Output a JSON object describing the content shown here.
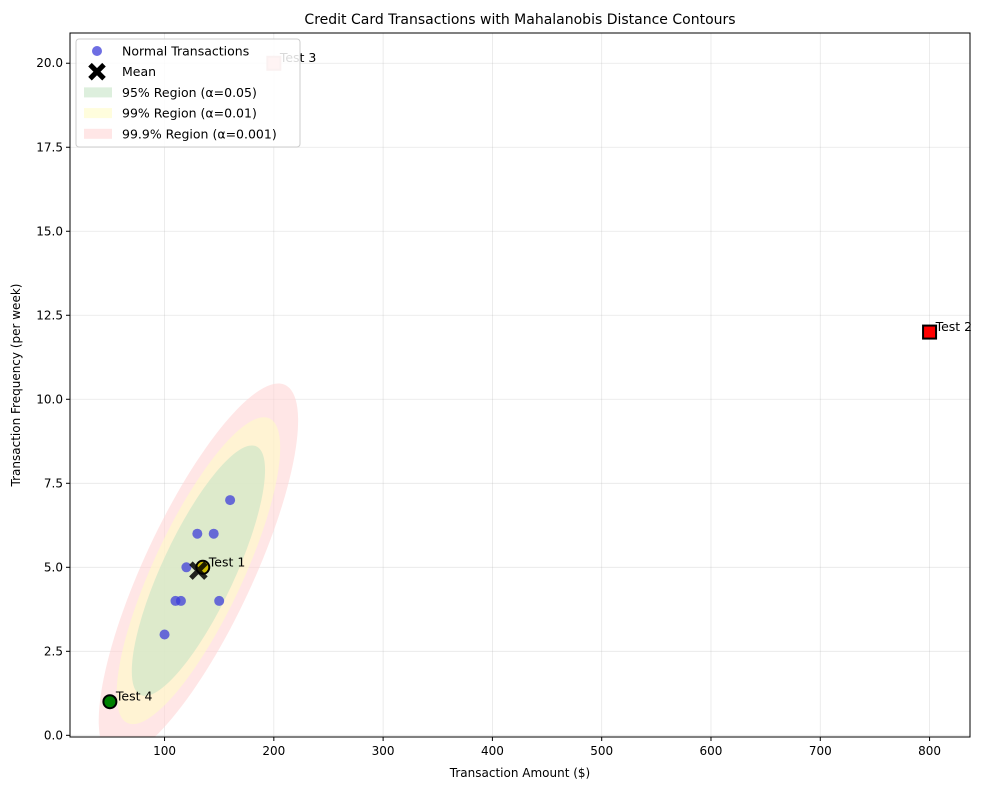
{
  "chart_data": {
    "type": "scatter",
    "title": "Credit Card Transactions with Mahalanobis Distance Contours",
    "xlabel": "Transaction Amount ($)",
    "ylabel": "Transaction Frequency (per week)",
    "xlim": [
      13.5,
      837
    ],
    "ylim": [
      -0.05,
      20.9
    ],
    "x_ticks": [
      100,
      200,
      300,
      400,
      500,
      600,
      700,
      800
    ],
    "y_ticks": [
      0.0,
      2.5,
      5.0,
      7.5,
      10.0,
      12.5,
      15.0,
      17.5,
      20.0
    ],
    "y_tick_labels": [
      "0.0",
      "2.5",
      "5.0",
      "7.5",
      "10.0",
      "12.5",
      "15.0",
      "17.5",
      "20.0"
    ],
    "grid": true,
    "legend_position": "top-left",
    "series": [
      {
        "name": "Normal Transactions",
        "marker": "circle",
        "color": "#3d3dd9",
        "points": [
          [
            100,
            3
          ],
          [
            110,
            4
          ],
          [
            115,
            4
          ],
          [
            120,
            5
          ],
          [
            130,
            6
          ],
          [
            135,
            5
          ],
          [
            145,
            6
          ],
          [
            150,
            4
          ],
          [
            160,
            7
          ]
        ]
      },
      {
        "name": "Mean",
        "marker": "X",
        "color": "#000000",
        "points": [
          [
            131,
            4.9
          ]
        ]
      }
    ],
    "regions": [
      {
        "name": "95% Region (α=0.05)",
        "color": "#c6e5c6",
        "center": [
          131,
          4.9
        ],
        "semi_axes": [
          4.08,
          0.3
        ],
        "angle_deg": 65
      },
      {
        "name": "99% Region (α=0.01)",
        "color": "#fffcc6",
        "center": [
          131,
          4.9
        ],
        "semi_axes": [
          5.0,
          0.37
        ],
        "angle_deg": 65
      },
      {
        "name": "99.9% Region (α=0.001)",
        "color": "#ffd6d6",
        "center": [
          131,
          4.9
        ],
        "semi_axes": [
          6.1,
          0.45
        ],
        "angle_deg": 65
      }
    ],
    "test_points": [
      {
        "label": "Test 1",
        "x": 135,
        "y": 5,
        "marker": "circle",
        "color": "#c9b800"
      },
      {
        "label": "Test 2",
        "x": 800,
        "y": 12,
        "marker": "square",
        "color": "#ff0000"
      },
      {
        "label": "Test 3",
        "x": 200,
        "y": 20,
        "marker": "square",
        "color": "#ffb3b3"
      },
      {
        "label": "Test 4",
        "x": 50,
        "y": 1,
        "marker": "circle",
        "color": "#008000"
      }
    ]
  }
}
